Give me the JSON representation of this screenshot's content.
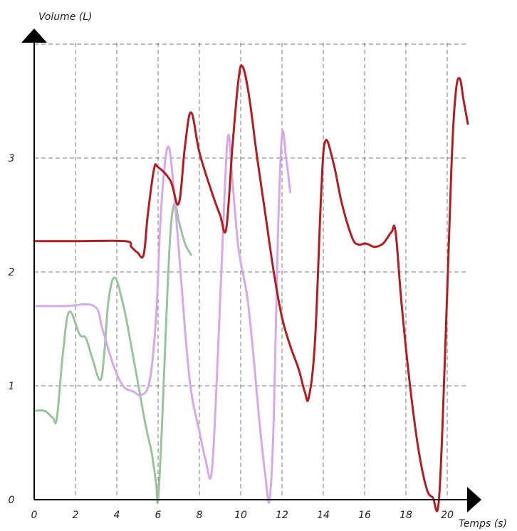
{
  "chart_data": {
    "type": "line",
    "xlabel": "Temps (s)",
    "ylabel": "Volume (L)",
    "xlim": [
      0,
      21
    ],
    "ylim": [
      0,
      4
    ],
    "xticks": [
      0,
      2,
      4,
      6,
      8,
      10,
      12,
      14,
      16,
      18,
      20
    ],
    "yticks": [
      0,
      1,
      2,
      3
    ],
    "grid": true,
    "series": [
      {
        "color": "#9ac49a",
        "points": [
          [
            0,
            0.78
          ],
          [
            0.5,
            0.78
          ],
          [
            0.9,
            0.72
          ],
          [
            1.1,
            0.72
          ],
          [
            1.4,
            1.3
          ],
          [
            1.7,
            1.65
          ],
          [
            2.2,
            1.45
          ],
          [
            2.5,
            1.42
          ],
          [
            2.8,
            1.25
          ],
          [
            3.2,
            1.05
          ],
          [
            3.4,
            1.3
          ],
          [
            3.6,
            1.75
          ],
          [
            3.9,
            1.95
          ],
          [
            4.3,
            1.72
          ],
          [
            4.6,
            1.45
          ],
          [
            5.0,
            1.05
          ],
          [
            5.4,
            0.65
          ],
          [
            5.7,
            0.4
          ],
          [
            5.9,
            0.15
          ],
          [
            6.0,
            0.0
          ],
          [
            6.2,
            0.7
          ],
          [
            6.4,
            1.6
          ],
          [
            6.6,
            2.35
          ],
          [
            6.8,
            2.6
          ],
          [
            7.0,
            2.45
          ],
          [
            7.3,
            2.25
          ],
          [
            7.6,
            2.15
          ]
        ]
      },
      {
        "color": "#d7a8ea",
        "points": [
          [
            0,
            1.7
          ],
          [
            1.5,
            1.7
          ],
          [
            2.9,
            1.7
          ],
          [
            3.3,
            1.5
          ],
          [
            3.8,
            1.2
          ],
          [
            4.3,
            1.0
          ],
          [
            4.8,
            0.95
          ],
          [
            5.2,
            0.92
          ],
          [
            5.6,
            1.05
          ],
          [
            5.9,
            1.6
          ],
          [
            6.1,
            2.4
          ],
          [
            6.3,
            2.9
          ],
          [
            6.5,
            3.1
          ],
          [
            6.7,
            2.85
          ],
          [
            7.0,
            2.2
          ],
          [
            7.3,
            1.5
          ],
          [
            7.6,
            0.95
          ],
          [
            8.0,
            0.6
          ],
          [
            8.3,
            0.35
          ],
          [
            8.6,
            0.25
          ],
          [
            8.9,
            1.3
          ],
          [
            9.2,
            2.6
          ],
          [
            9.4,
            3.2
          ],
          [
            9.6,
            2.8
          ],
          [
            9.9,
            2.2
          ],
          [
            10.3,
            1.8
          ],
          [
            10.6,
            1.3
          ],
          [
            10.9,
            0.7
          ],
          [
            11.2,
            0.2
          ],
          [
            11.4,
            0.0
          ],
          [
            11.6,
            0.7
          ],
          [
            11.8,
            2.3
          ],
          [
            12.0,
            3.2
          ],
          [
            12.2,
            3.0
          ],
          [
            12.4,
            2.7
          ]
        ]
      },
      {
        "color": "#b11e22",
        "points": [
          [
            0,
            2.27
          ],
          [
            2.0,
            2.27
          ],
          [
            4.4,
            2.27
          ],
          [
            4.7,
            2.22
          ],
          [
            5.0,
            2.17
          ],
          [
            5.3,
            2.15
          ],
          [
            5.5,
            2.5
          ],
          [
            5.8,
            2.9
          ],
          [
            6.0,
            2.92
          ],
          [
            6.6,
            2.8
          ],
          [
            7.0,
            2.6
          ],
          [
            7.3,
            3.1
          ],
          [
            7.6,
            3.4
          ],
          [
            8.0,
            3.05
          ],
          [
            8.6,
            2.7
          ],
          [
            9.0,
            2.5
          ],
          [
            9.3,
            2.38
          ],
          [
            9.6,
            3.1
          ],
          [
            9.9,
            3.7
          ],
          [
            10.1,
            3.8
          ],
          [
            10.4,
            3.55
          ],
          [
            10.8,
            3.0
          ],
          [
            11.2,
            2.5
          ],
          [
            11.6,
            2.0
          ],
          [
            12.0,
            1.6
          ],
          [
            12.4,
            1.35
          ],
          [
            12.8,
            1.15
          ],
          [
            13.1,
            0.95
          ],
          [
            13.3,
            0.9
          ],
          [
            13.6,
            1.4
          ],
          [
            13.9,
            2.7
          ],
          [
            14.1,
            3.15
          ],
          [
            14.5,
            2.95
          ],
          [
            14.9,
            2.6
          ],
          [
            15.4,
            2.3
          ],
          [
            15.7,
            2.24
          ],
          [
            16.0,
            2.25
          ],
          [
            16.2,
            2.24
          ],
          [
            16.5,
            2.22
          ],
          [
            16.9,
            2.25
          ],
          [
            17.3,
            2.35
          ],
          [
            17.5,
            2.35
          ],
          [
            17.8,
            1.7
          ],
          [
            18.2,
            1.0
          ],
          [
            18.6,
            0.45
          ],
          [
            19.0,
            0.1
          ],
          [
            19.3,
            0.02
          ],
          [
            19.6,
            0.0
          ],
          [
            19.9,
            1.3
          ],
          [
            20.2,
            2.9
          ],
          [
            20.4,
            3.55
          ],
          [
            20.6,
            3.7
          ],
          [
            20.8,
            3.5
          ],
          [
            21.0,
            3.3
          ]
        ]
      }
    ]
  }
}
